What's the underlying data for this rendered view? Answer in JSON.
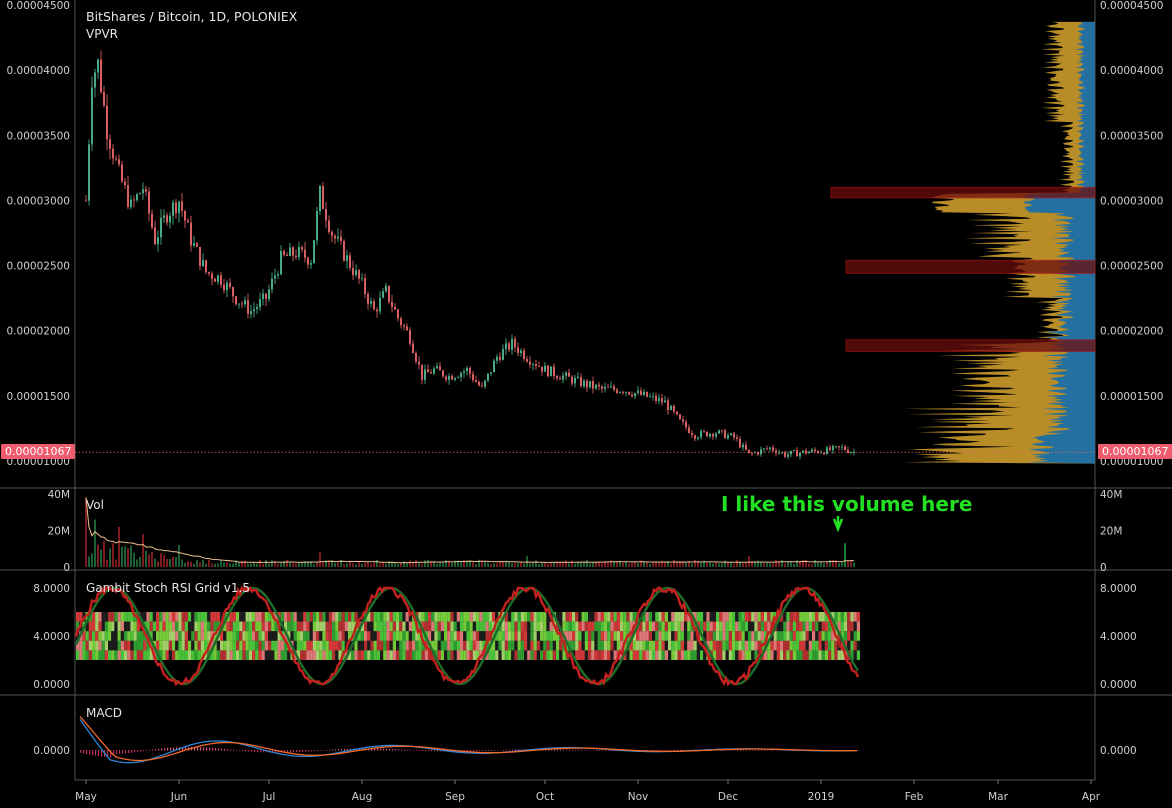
{
  "header": {
    "title": "BitShares / Bitcoin, 1D, POLONIEX",
    "indicator": "VPVR"
  },
  "annotation": "I like this volume here",
  "last_price_tag": "0.00001067",
  "chart_data": [
    {
      "type": "candlestick",
      "title": "BitShares / Bitcoin, 1D, POLONIEX",
      "y_ticks": [
        "0.00004500",
        "0.00004000",
        "0.00003500",
        "0.00003000",
        "0.00002500",
        "0.00002000",
        "0.00001500",
        "0.00001000"
      ],
      "ylim": [
        9.5e-06,
        4.5e-05
      ],
      "x_ticks": [
        "May",
        "Jun",
        "Jul",
        "Aug",
        "Sep",
        "Oct",
        "Nov",
        "Dec",
        "2019",
        "Feb",
        "Mar",
        "Apr"
      ],
      "last_price": 1.067e-05,
      "close_path": [
        [
          "2018-05-01",
          3e-05
        ],
        [
          "2018-05-03",
          3.95e-05
        ],
        [
          "2018-05-05",
          4.05e-05
        ],
        [
          "2018-05-08",
          3.55e-05
        ],
        [
          "2018-05-12",
          3.2e-05
        ],
        [
          "2018-05-16",
          2.95e-05
        ],
        [
          "2018-05-20",
          3.1e-05
        ],
        [
          "2018-05-24",
          2.7e-05
        ],
        [
          "2018-05-28",
          2.9e-05
        ],
        [
          "2018-06-01",
          3e-05
        ],
        [
          "2018-06-05",
          2.7e-05
        ],
        [
          "2018-06-10",
          2.45e-05
        ],
        [
          "2018-06-15",
          2.4e-05
        ],
        [
          "2018-06-20",
          2.25e-05
        ],
        [
          "2018-06-25",
          2.15e-05
        ],
        [
          "2018-06-30",
          2.25e-05
        ],
        [
          "2018-07-05",
          2.55e-05
        ],
        [
          "2018-07-10",
          2.6e-05
        ],
        [
          "2018-07-15",
          2.55e-05
        ],
        [
          "2018-07-18",
          3.05e-05
        ],
        [
          "2018-07-22",
          2.75e-05
        ],
        [
          "2018-07-27",
          2.55e-05
        ],
        [
          "2018-08-01",
          2.35e-05
        ],
        [
          "2018-08-05",
          2.15e-05
        ],
        [
          "2018-08-09",
          2.3e-05
        ],
        [
          "2018-08-13",
          2.1e-05
        ],
        [
          "2018-08-17",
          1.95e-05
        ],
        [
          "2018-08-21",
          1.65e-05
        ],
        [
          "2018-08-25",
          1.7e-05
        ],
        [
          "2018-08-30",
          1.65e-05
        ],
        [
          "2018-09-05",
          1.7e-05
        ],
        [
          "2018-09-10",
          1.55e-05
        ],
        [
          "2018-09-15",
          1.8e-05
        ],
        [
          "2018-09-20",
          1.9e-05
        ],
        [
          "2018-09-25",
          1.8e-05
        ],
        [
          "2018-10-01",
          1.7e-05
        ],
        [
          "2018-10-07",
          1.65e-05
        ],
        [
          "2018-10-13",
          1.6e-05
        ],
        [
          "2018-10-20",
          1.55e-05
        ],
        [
          "2018-10-27",
          1.55e-05
        ],
        [
          "2018-11-03",
          1.5e-05
        ],
        [
          "2018-11-10",
          1.45e-05
        ],
        [
          "2018-11-15",
          1.3e-05
        ],
        [
          "2018-11-20",
          1.2e-05
        ],
        [
          "2018-11-27",
          1.22e-05
        ],
        [
          "2018-12-03",
          1.18e-05
        ],
        [
          "2018-12-08",
          1.05e-05
        ],
        [
          "2018-12-15",
          1.1e-05
        ],
        [
          "2018-12-20",
          1.05e-05
        ],
        [
          "2018-12-27",
          1.07e-05
        ],
        [
          "2019-01-03",
          1.08e-05
        ],
        [
          "2019-01-08",
          1.1e-05
        ],
        [
          "2019-01-12",
          1.07e-05
        ]
      ]
    },
    {
      "type": "bar",
      "title": "Vol",
      "y_ticks": [
        "40M",
        "20M",
        "0"
      ],
      "ylim": [
        0,
        40000000
      ],
      "peaks": [
        [
          "2018-05-01",
          38000000
        ],
        [
          "2018-05-04",
          26000000
        ],
        [
          "2018-05-12",
          22000000
        ],
        [
          "2018-05-20",
          18000000
        ],
        [
          "2018-06-01",
          12000000
        ],
        [
          "2018-07-18",
          8000000
        ],
        [
          "2018-09-25",
          6000000
        ],
        [
          "2018-12-08",
          6000000
        ],
        [
          "2019-01-09",
          13000000
        ]
      ]
    },
    {
      "type": "line",
      "title": "Gambit Stoch RSI Grid v1.5",
      "y_ticks": [
        "8.0000",
        "4.0000",
        "0.0000"
      ],
      "ylim": [
        -0.5,
        9
      ]
    },
    {
      "type": "line",
      "title": "MACD",
      "y_ticks": [
        "0.0000"
      ]
    }
  ],
  "colors": {
    "bg": "#000000",
    "up": "#4fbf93",
    "down": "#ef6a6a",
    "vpvr_gold": "#c2952a",
    "vpvr_blue": "#1b6fa8",
    "vpvr_box": "#6b0e0e",
    "accent_green": "#22e022",
    "price_tag": "#ef5c6e"
  }
}
